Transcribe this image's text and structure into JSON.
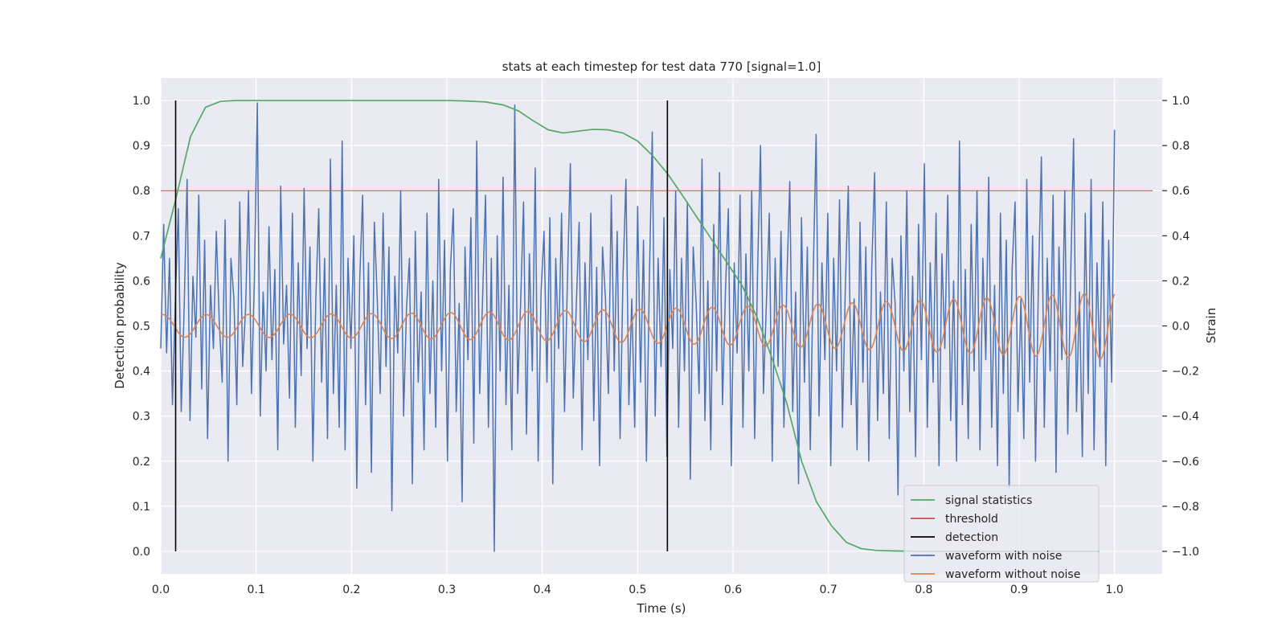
{
  "chart_data": {
    "type": "line",
    "title": "stats at each timestep for test data 770 [signal=1.0]",
    "xlabel": "Time (s)",
    "ylabel_left": "Detection probability",
    "ylabel_right": "Strain",
    "xlim": [
      0.0,
      1.05
    ],
    "ylim_left": [
      -0.05,
      1.05
    ],
    "ylim_right": [
      -1.1,
      1.1
    ],
    "x_ticks": [
      "0.0",
      "0.1",
      "0.2",
      "0.3",
      "0.4",
      "0.5",
      "0.6",
      "0.7",
      "0.8",
      "0.9",
      "1.0"
    ],
    "y_ticks_left": [
      "0.0",
      "0.1",
      "0.2",
      "0.3",
      "0.4",
      "0.5",
      "0.6",
      "0.7",
      "0.8",
      "0.9",
      "1.0"
    ],
    "y_ticks_right": [
      "−1.0",
      "−0.8",
      "−0.6",
      "−0.4",
      "−0.2",
      "0.0",
      "0.2",
      "0.4",
      "0.6",
      "0.8",
      "1.0"
    ],
    "grid": true,
    "legend_position": "bottom-right",
    "series": [
      {
        "name": "signal statistics",
        "color": "#55a868",
        "axis": "left",
        "x": [
          0.0,
          0.0156,
          0.0312,
          0.0469,
          0.0625,
          0.0781,
          0.125,
          0.25,
          0.3,
          0.32,
          0.34,
          0.3594,
          0.375,
          0.3906,
          0.4062,
          0.4219,
          0.4375,
          0.4531,
          0.4688,
          0.4844,
          0.5,
          0.5156,
          0.5312,
          0.5469,
          0.5625,
          0.5781,
          0.5938,
          0.6094,
          0.625,
          0.6406,
          0.6562,
          0.6719,
          0.6875,
          0.7031,
          0.7188,
          0.7344,
          0.75,
          0.7656,
          0.8,
          0.9,
          0.9844
        ],
        "values": [
          0.65,
          0.78,
          0.92,
          0.985,
          0.998,
          1.0,
          1.0,
          1.0,
          1.0,
          0.999,
          0.997,
          0.99,
          0.977,
          0.955,
          0.935,
          0.928,
          0.932,
          0.936,
          0.935,
          0.928,
          0.91,
          0.878,
          0.838,
          0.79,
          0.74,
          0.69,
          0.64,
          0.59,
          0.52,
          0.43,
          0.33,
          0.2,
          0.11,
          0.057,
          0.02,
          0.006,
          0.002,
          0.001,
          0.0,
          0.0,
          0.0
        ]
      },
      {
        "name": "threshold",
        "color": "#c44e52",
        "axis": "left",
        "x": [
          0.0,
          1.04
        ],
        "values": [
          0.8,
          0.8
        ]
      },
      {
        "name": "detection",
        "color": "#000000",
        "axis": "left",
        "vlines": [
          0.0156,
          0.5312
        ],
        "values": [
          0.0,
          1.0
        ]
      },
      {
        "name": "waveform with noise",
        "color": "#4c72b0",
        "axis": "right",
        "x_range": [
          0.0,
          1.0
        ],
        "values": [
          -0.1,
          0.45,
          -0.12,
          0.3,
          -0.35,
          0.12,
          0.52,
          -0.38,
          0.08,
          0.65,
          -0.42,
          0.22,
          -0.05,
          0.58,
          -0.28,
          0.38,
          -0.5,
          0.18,
          -0.1,
          0.42,
          0.02,
          -0.25,
          0.47,
          -0.6,
          0.3,
          0.12,
          -0.35,
          0.55,
          -0.18,
          0.08,
          0.6,
          -0.3,
          0.2,
          0.99,
          -0.4,
          0.15,
          -0.2,
          0.44,
          -0.15,
          0.25,
          -0.55,
          0.62,
          -0.08,
          0.18,
          -0.32,
          0.5,
          -0.45,
          0.28,
          -0.22,
          0.61,
          -0.1,
          0.35,
          -0.6,
          0.12,
          0.52,
          -0.25,
          0.3,
          -0.5,
          0.74,
          -0.3,
          0.18,
          -0.45,
          0.82,
          -0.55,
          0.3,
          -0.1,
          0.4,
          -0.72,
          0.2,
          0.58,
          -0.35,
          0.28,
          -0.65,
          0.46,
          0.12,
          -0.3,
          0.5,
          -0.18,
          0.35,
          -0.82,
          0.22,
          -0.12,
          0.6,
          -0.4,
          0.08,
          0.3,
          -0.7,
          0.42,
          -0.25,
          0.15,
          -0.55,
          0.5,
          -0.3,
          0.2,
          -0.45,
          0.65,
          -0.2,
          0.38,
          -0.6,
          0.25,
          0.52,
          -0.38,
          0.1,
          -0.78,
          0.35,
          -0.15,
          0.48,
          -0.52,
          0.82,
          -0.3,
          0.12,
          0.58,
          -0.45,
          0.3,
          -1.0,
          0.4,
          -0.2,
          0.66,
          -0.35,
          0.18,
          -0.55,
          0.98,
          -0.3,
          0.1,
          0.55,
          -0.48,
          0.32,
          -0.2,
          0.7,
          -0.6,
          0.15,
          0.42,
          -0.25,
          0.48,
          -0.7,
          0.3,
          -0.1,
          0.5,
          -0.38,
          0.2,
          0.72,
          -0.32,
          0.08,
          0.46,
          -0.55,
          0.28,
          -0.15,
          0.5,
          -0.42,
          0.26,
          -0.62,
          0.35,
          0.12,
          -0.3,
          0.58,
          -0.2,
          0.42,
          -0.5,
          0.22,
          0.65,
          -0.35,
          0.12,
          -0.45,
          0.53,
          -0.25,
          0.38,
          -0.6,
          0.2,
          0.86,
          -0.4,
          0.3,
          -0.18,
          0.48,
          -0.58,
          0.25,
          -0.1,
          0.6,
          -0.45,
          0.3,
          -0.2,
          0.55,
          -0.68,
          0.35,
          0.1,
          -0.3,
          0.74,
          -0.42,
          0.2,
          -0.55,
          0.45,
          -0.2,
          0.68,
          -0.35,
          0.15,
          0.52,
          -0.62,
          0.28,
          -0.12,
          0.58,
          -0.45,
          0.32,
          -0.2,
          0.6,
          -0.5,
          0.25,
          0.8,
          -0.3,
          0.1,
          0.5,
          -0.6,
          0.3,
          -0.18,
          0.42,
          -0.45,
          0.2,
          0.64,
          -0.38,
          0.15,
          -0.7,
          0.48,
          -0.25,
          0.35,
          -0.55,
          0.22,
          0.85,
          -0.4,
          0.28,
          -0.15,
          0.5,
          -0.62,
          0.3,
          -0.2,
          0.56,
          -0.45,
          0.18,
          0.62,
          -0.35,
          0.12,
          -0.55,
          0.46,
          -0.25,
          0.35,
          -0.6,
          0.25,
          0.68,
          -0.42,
          0.15,
          -0.3,
          0.55,
          -0.5,
          0.3,
          0.1,
          -0.75,
          0.4,
          -0.2,
          0.6,
          -0.38,
          0.22,
          -0.58,
          0.45,
          -0.15,
          0.72,
          -0.45,
          0.28,
          -0.25,
          0.5,
          -0.62,
          0.32,
          -0.1,
          0.58,
          -0.42,
          0.2,
          -0.6,
          0.82,
          -0.35,
          0.25,
          -0.5,
          0.45,
          -0.2,
          0.6,
          -0.55,
          0.3,
          -0.15,
          0.66,
          -0.45,
          0.18,
          -0.62,
          0.5,
          -0.3,
          0.38,
          -0.72,
          0.25,
          0.55,
          -0.38,
          0.12,
          -0.5,
          0.65,
          -0.25,
          0.4,
          -0.6,
          0.2,
          0.75,
          -0.45,
          0.3,
          -0.2,
          0.58,
          -0.65,
          0.35,
          -0.15,
          0.6,
          -0.48,
          0.22,
          0.83,
          -0.38,
          0.15,
          -0.58,
          0.5,
          -0.3,
          0.65,
          -0.55,
          0.28,
          -0.18,
          0.55,
          -0.62,
          0.38,
          -0.25,
          0.87
        ]
      },
      {
        "name": "waveform without noise",
        "color": "#dd8452",
        "axis": "right",
        "x_range": [
          0.0,
          1.0
        ],
        "waveform": {
          "amp_start": 0.05,
          "amp_end": 0.15,
          "freq_start": 22,
          "freq_end": 30,
          "phase": 1.2
        }
      }
    ]
  }
}
